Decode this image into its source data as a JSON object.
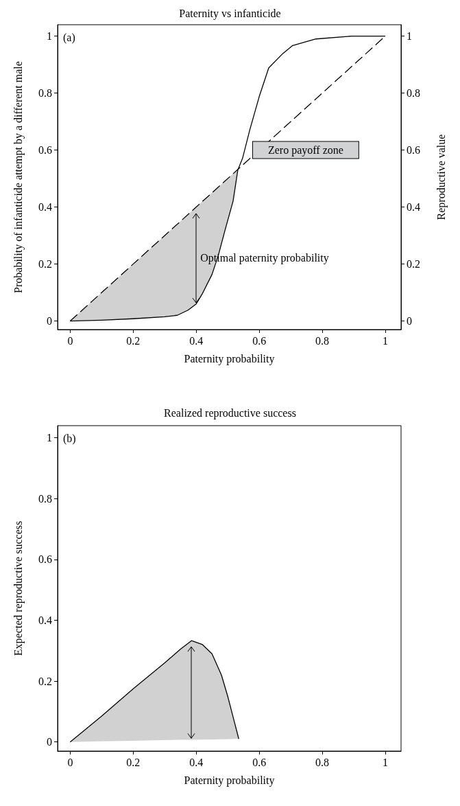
{
  "chart_data": [
    {
      "type": "line",
      "title": "Paternity vs infanticide",
      "xlabel": "Paternity probability",
      "ylabel": "Probability of infanticide attempt by a different male",
      "y2label": "Reproductive value",
      "xlim": [
        -0.04,
        1.05
      ],
      "xticks": [
        0,
        0.2,
        0.4,
        0.6,
        0.8,
        1
      ],
      "ylim": [
        -0.03,
        1.04
      ],
      "yticks": [
        0,
        0.2,
        0.4,
        0.6,
        0.8,
        1
      ],
      "y2lim": [
        -0.03,
        1.04
      ],
      "y2ticks": [
        0,
        0.2,
        0.4,
        0.6,
        0.8,
        1
      ],
      "marker": "none",
      "annotations": [
        "(a)",
        "Zero payoff zone",
        "Optimal paternity probability"
      ],
      "series": [
        {
          "color": "#000000",
          "x": [
            0,
            0.1,
            0.2,
            0.3,
            0.34,
            0.374,
            0.4,
            0.42,
            0.45,
            0.47,
            0.49,
            0.517,
            0.532,
            0.547,
            0.57,
            0.6,
            0.63,
            0.675,
            0.706,
            0.78,
            0.894,
            1
          ],
          "values": [
            0,
            0.003,
            0.008,
            0.015,
            0.02,
            0.038,
            0.06,
            0.097,
            0.163,
            0.23,
            0.313,
            0.421,
            0.53,
            0.571,
            0.671,
            0.788,
            0.888,
            0.939,
            0.967,
            0.99,
            1.0,
            1.0
          ],
          "lower": [
            0,
            0.003,
            0.008,
            0.015,
            0.02,
            0.038,
            0.06,
            0.097,
            0.163,
            0.23,
            0.313,
            0.421,
            0.53,
            null,
            null,
            null,
            null,
            null,
            null,
            null,
            null,
            null
          ],
          "upper": [
            0,
            0.1,
            0.2,
            0.3,
            0.34,
            0.374,
            0.4,
            0.42,
            0.45,
            0.47,
            0.49,
            0.517,
            0.532,
            null,
            null,
            null,
            null,
            null,
            null,
            null,
            null,
            null
          ]
        },
        {
          "color": "#000000",
          "x": [
            0,
            1
          ],
          "values": [
            0,
            1
          ],
          "line_style": "dashed"
        }
      ]
    },
    {
      "type": "line",
      "title": "Realized reproductive success",
      "xlabel": "Paternity probability",
      "ylabel": "Expected reproductive success",
      "xlim": [
        -0.04,
        1.05
      ],
      "xticks": [
        0,
        0.2,
        0.4,
        0.6,
        0.8,
        1
      ],
      "ylim": [
        -0.03,
        1.04
      ],
      "yticks": [
        0,
        0.2,
        0.4,
        0.6,
        0.8,
        1
      ],
      "marker": "none",
      "annotations": [
        "(b)"
      ],
      "series": [
        {
          "color": "#000000",
          "x": [
            0,
            0.1,
            0.2,
            0.3,
            0.35,
            0.385,
            0.42,
            0.45,
            0.48,
            0.5,
            0.52,
            0.535
          ],
          "values": [
            0,
            0.085,
            0.175,
            0.26,
            0.305,
            0.333,
            0.32,
            0.29,
            0.22,
            0.15,
            0.07,
            0.01
          ],
          "lower": [
            0,
            0.002,
            0.004,
            0.006,
            0.007,
            0.007,
            0.008,
            0.008,
            0.009,
            0.009,
            0.01,
            0.01
          ],
          "upper": [
            0,
            0.085,
            0.175,
            0.26,
            0.305,
            0.333,
            0.32,
            0.29,
            0.22,
            0.15,
            0.07,
            0.01
          ]
        }
      ]
    }
  ]
}
